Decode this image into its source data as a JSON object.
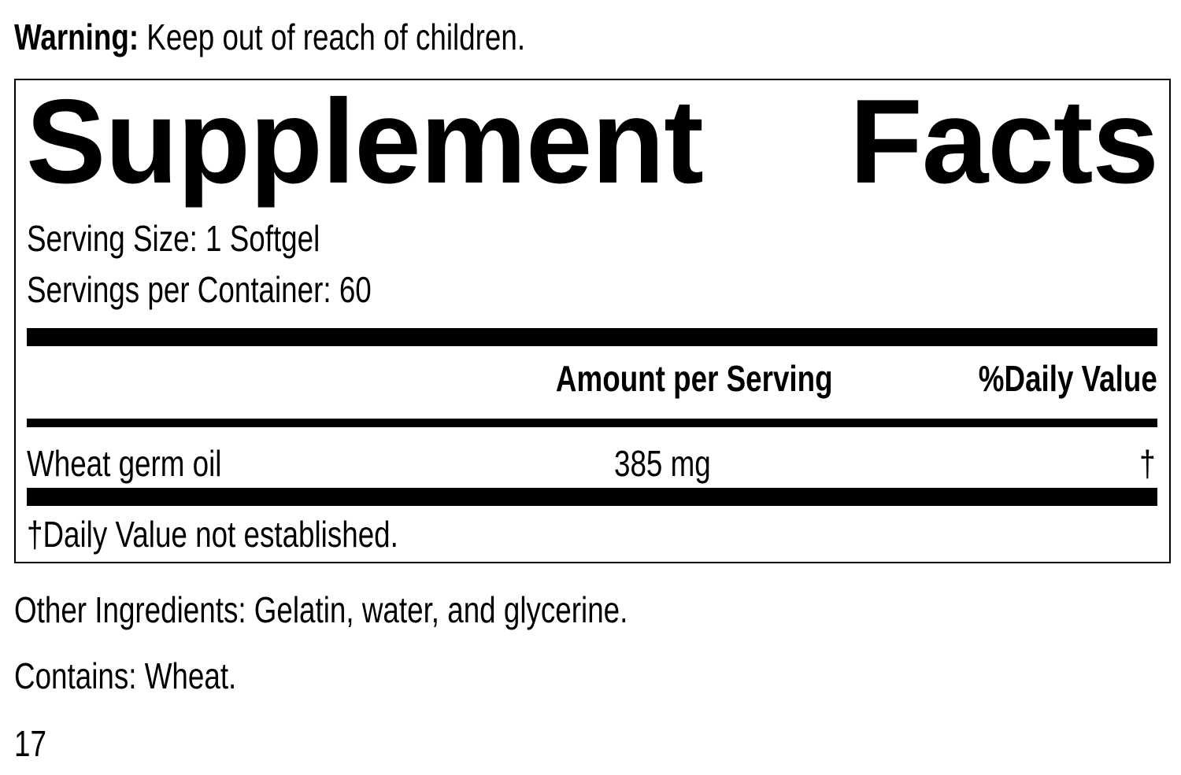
{
  "warning": {
    "label": "Warning:",
    "text": "Keep out of reach of children."
  },
  "panel": {
    "title_words": [
      "Supplement",
      "Facts"
    ],
    "serving_size": "Serving Size: 1 Softgel",
    "servings_per_container": "Servings per Container: 60",
    "columns": {
      "amount": "Amount per Serving",
      "daily_value": "%Daily Value"
    },
    "rows": [
      {
        "name": "Wheat germ oil",
        "amount": "385 mg",
        "daily_value": "†"
      }
    ],
    "footnote": "†Daily Value not established."
  },
  "other_ingredients": "Other Ingredients: Gelatin, water, and glycerine.",
  "contains": "Contains: Wheat.",
  "code": "17"
}
